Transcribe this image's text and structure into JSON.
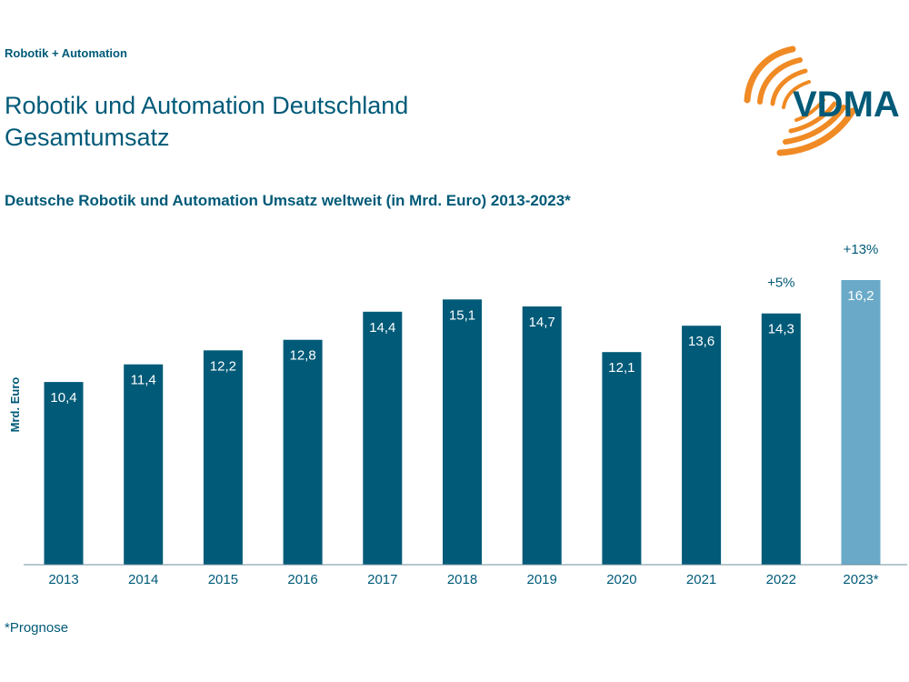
{
  "header": {
    "section": "Robotik + Automation",
    "title_line1": "Robotik und Automation Deutschland",
    "title_line2": "Gesamtumsatz",
    "logo_text": "VDMA"
  },
  "colors": {
    "primary": "#005a78",
    "forecast": "#6aaac8",
    "accent_orange": "#f08a24",
    "axis": "#6f8f9c"
  },
  "chart_data": {
    "type": "bar",
    "title": "Deutsche Robotik und Automation Umsatz weltweit (in Mrd. Euro) 2013-2023*",
    "ylabel": "Mrd. Euro",
    "xlabel": "",
    "ylim": [
      0,
      16.2
    ],
    "grid": false,
    "categories": [
      "2013",
      "2014",
      "2015",
      "2016",
      "2017",
      "2018",
      "2019",
      "2020",
      "2021",
      "2022",
      "2023*"
    ],
    "values": [
      10.4,
      11.4,
      12.2,
      12.8,
      14.4,
      15.1,
      14.7,
      12.1,
      13.6,
      14.3,
      16.2
    ],
    "value_labels": [
      "10,4",
      "11,4",
      "12,2",
      "12,8",
      "14,4",
      "15,1",
      "14,7",
      "12,1",
      "13,6",
      "14,3",
      "16,2"
    ],
    "forecast_flags": [
      false,
      false,
      false,
      false,
      false,
      false,
      false,
      false,
      false,
      false,
      true
    ],
    "annotations": [
      {
        "category": "2022",
        "text": "+5%"
      },
      {
        "category": "2023*",
        "text": "+13%"
      }
    ]
  },
  "footnote": "*Prognose"
}
